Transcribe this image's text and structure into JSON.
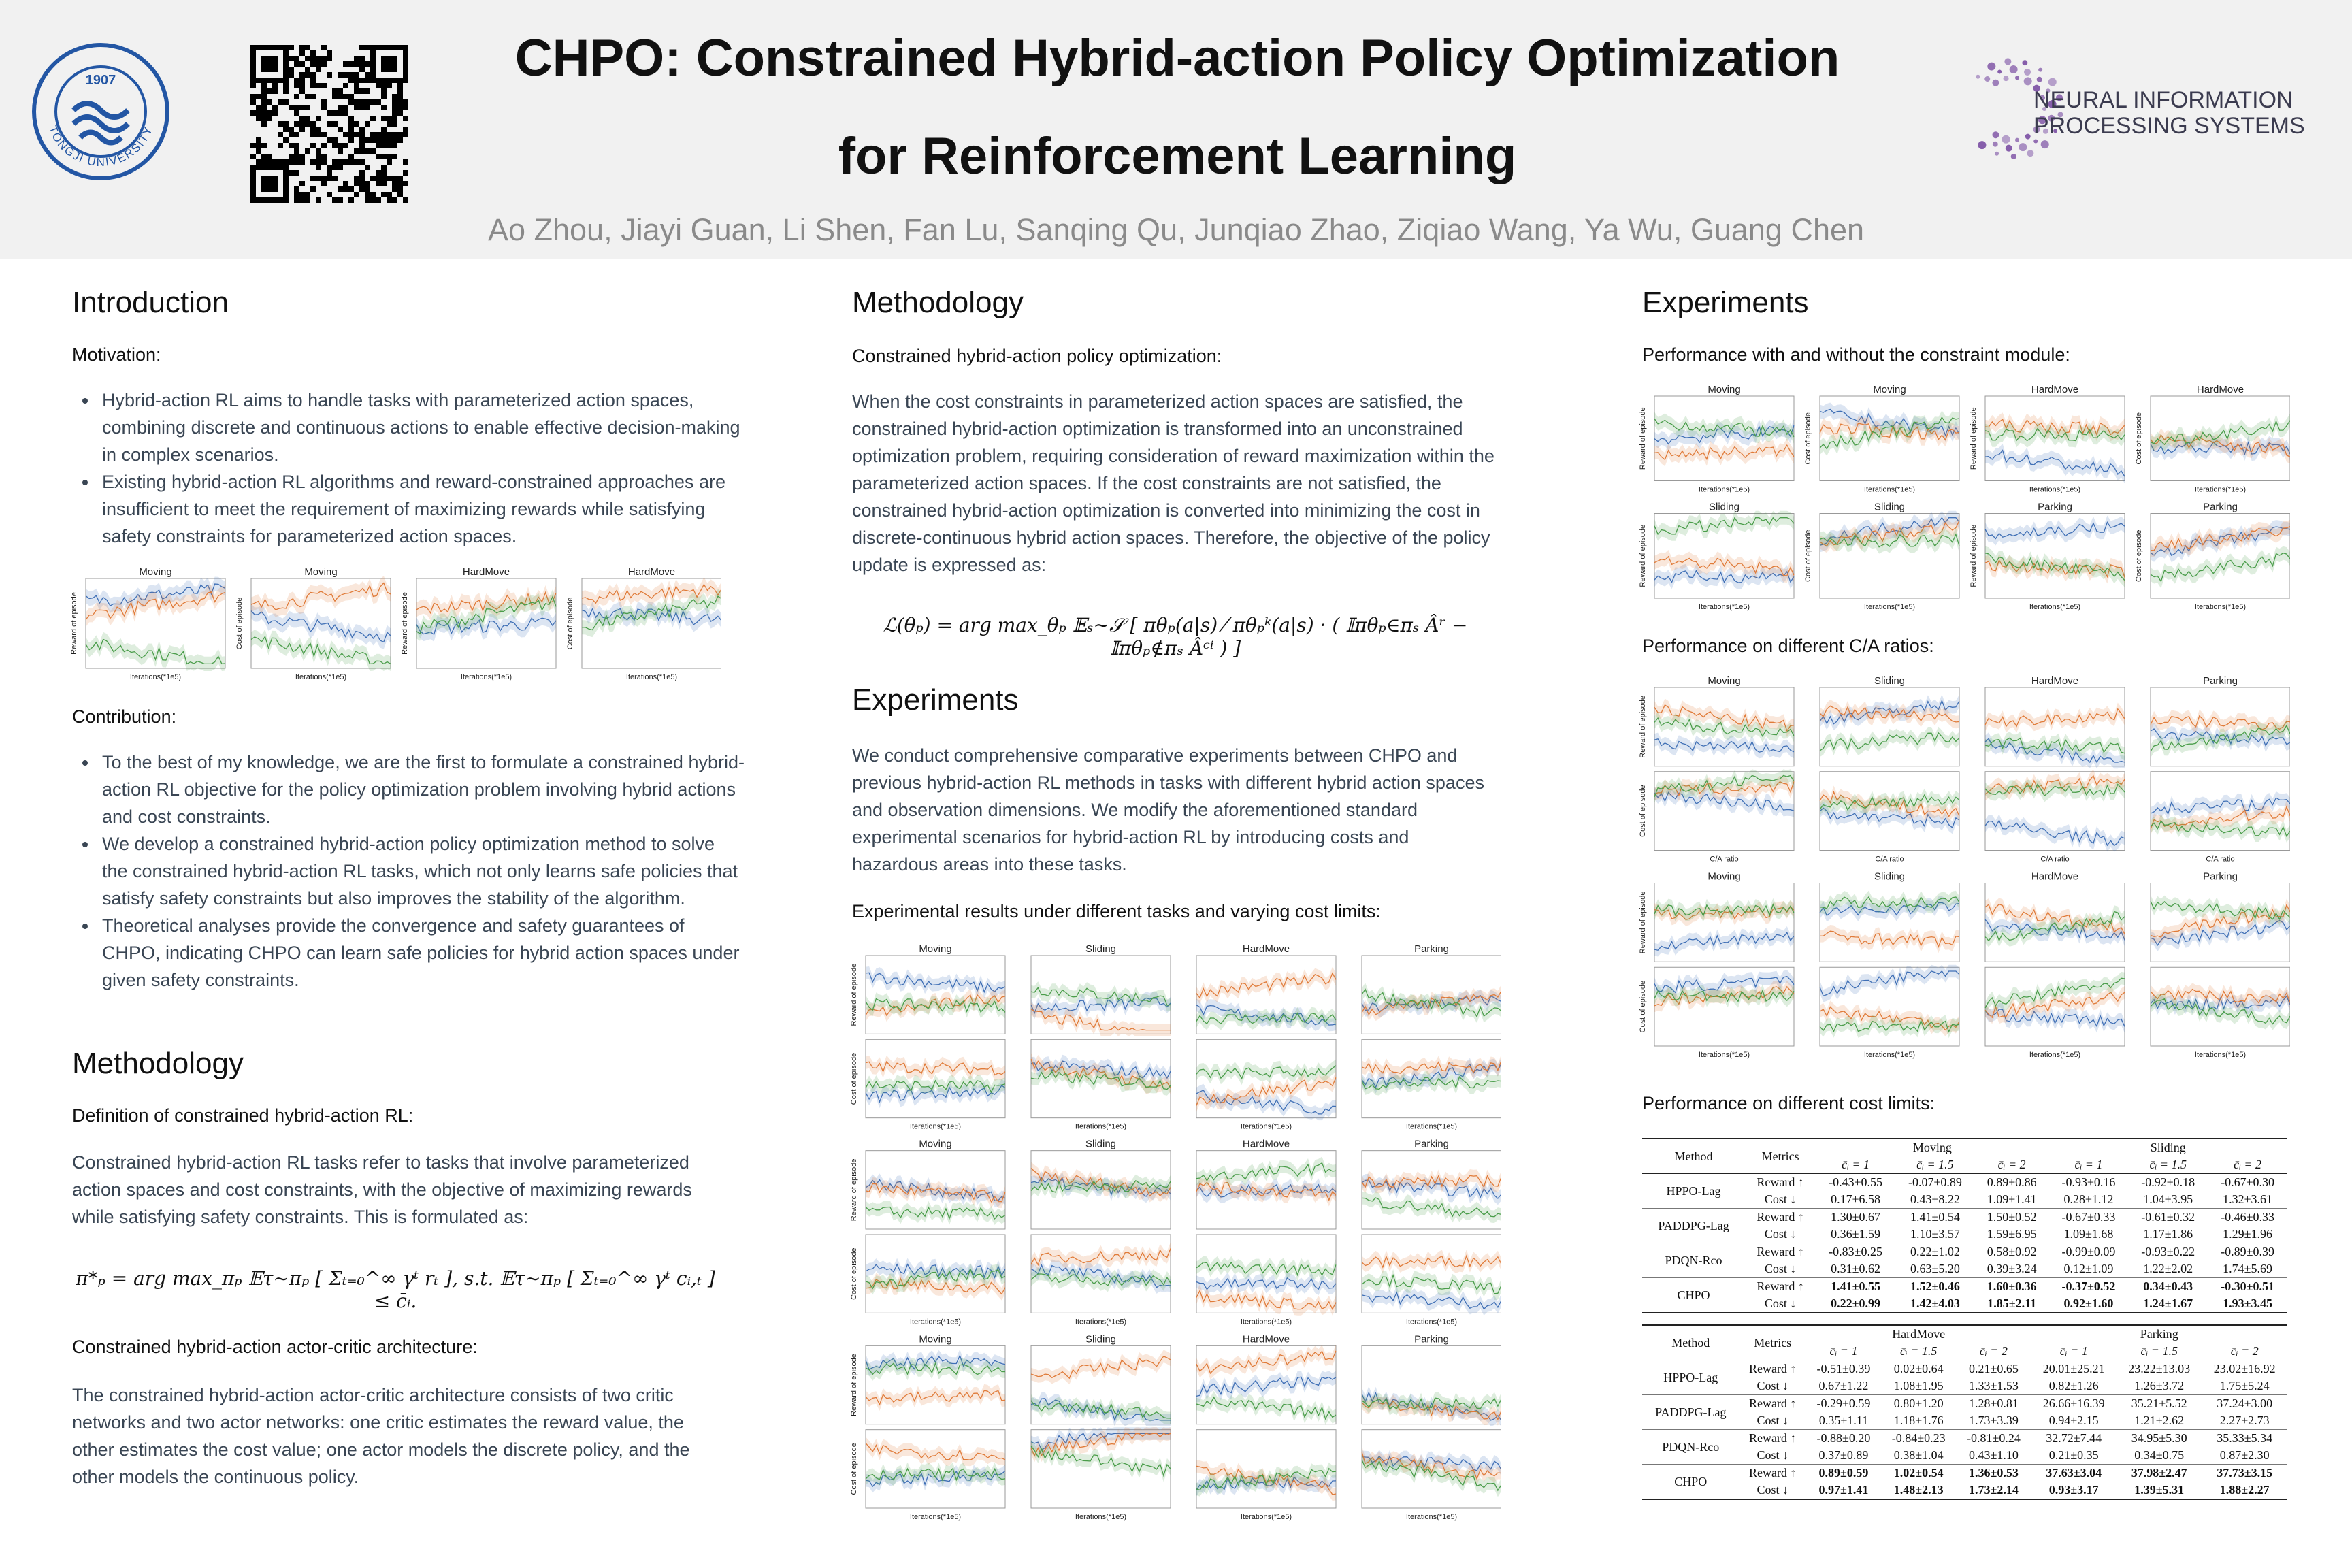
{
  "header": {
    "title_line1": "CHPO: Constrained Hybrid-action Policy Optimization",
    "title_line2": "for Reinforcement Learning",
    "authors": "Ao Zhou, Jiayi Guan, Li Shen, Fan Lu, Sanqing Qu, Junqiao Zhao, Ziqiao Wang, Ya Wu, Guang Chen",
    "logo_name": "TONGJI UNIVERSITY",
    "logo_year": "1907",
    "neurips_line1": "NEURAL INFORMATION",
    "neurips_line2": "PROCESSING SYSTEMS"
  },
  "introduction": {
    "heading": "Introduction",
    "motivation_label": "Motivation:",
    "motivation_bullets": [
      "Hybrid-action RL aims to handle tasks with parameterized action spaces, combining discrete and continuous actions to enable effective decision-making in complex scenarios.",
      "Existing hybrid-action RL algorithms and reward-constrained approaches are insufficient to meet the requirement of maximizing rewards while satisfying safety constraints for parameterized action spaces."
    ],
    "figure": {
      "rows": [
        {
          "titles": [
            "Moving",
            "Moving",
            "HardMove",
            "HardMove"
          ],
          "ylabels": [
            "Reward of episode",
            "Cost of episode",
            "Reward of episode",
            "Cost of episode"
          ],
          "xlabel": "Iterations(*1e5)"
        }
      ]
    },
    "contribution_label": "Contribution:",
    "contribution_bullets": [
      "To the best of my knowledge, we are the first to formulate a constrained hybrid-action RL objective for the policy optimization problem involving hybrid actions and cost constraints.",
      "We develop a constrained hybrid-action policy optimization method to solve the constrained hybrid-action RL tasks, which not only learns safe policies that satisfy safety constraints but also improves the stability of the algorithm.",
      "Theoretical analyses provide the convergence and safety guarantees of CHPO, indicating CHPO can learn safe policies for hybrid action spaces under given safety constraints."
    ]
  },
  "methodology_left": {
    "heading": "Methodology",
    "definition_label": "Definition of constrained hybrid-action RL:",
    "definition_text": "Constrained hybrid-action RL tasks refer to tasks that involve parameterized action spaces and cost constraints, with the objective of maximizing rewards while satisfying safety constraints. This is formulated as:",
    "equation": "π*ₚ = arg max_πₚ 𝔼τ∼πₚ [ Σₜ₌₀^∞ γᵗ rₜ ],  s.t. 𝔼τ∼πₚ [ Σₜ₌₀^∞ γᵗ cᵢ,ₜ ] ≤ c̄ᵢ.",
    "architecture_label": "Constrained hybrid-action actor-critic architecture:",
    "architecture_text": "The constrained hybrid-action actor-critic architecture consists of two critic networks and two actor networks: one critic estimates the reward value, the other estimates the cost value; one actor models the discrete policy, and the other models the continuous policy."
  },
  "methodology_middle": {
    "heading": "Methodology",
    "label": "Constrained hybrid-action policy optimization:",
    "text": "When the cost constraints in parameterized action spaces are satisfied, the constrained hybrid-action optimization is transformed into an unconstrained optimization problem, requiring consideration of reward maximization within the parameterized action spaces. If the cost constraints are not satisfied, the constrained hybrid-action optimization is converted into minimizing the cost in discrete-continuous hybrid action spaces. Therefore, the objective of the policy update is expressed as:",
    "equation": "ℒ(θₚ) = arg max_θₚ 𝔼ₛ∼𝒮 [ πθₚ(a|s) ⁄ πθₚᵏ(a|s) · ( 𝕀πθₚ∈πₛ Âʳ − 𝕀πθₚ∉πₛ Âᶜⁱ ) ]"
  },
  "experiments_middle": {
    "heading": "Experiments",
    "text": "We conduct comprehensive comparative experiments between CHPO and previous hybrid-action RL methods in tasks with different hybrid action spaces and observation dimensions. We modify the aforementioned standard experimental scenarios for hybrid-action RL by introducing costs and hazardous areas into these tasks.",
    "figure_label": "Experimental results under different tasks and varying cost limits:",
    "figure": {
      "rows": [
        {
          "titles": [
            "Moving",
            "Sliding",
            "HardMove",
            "Parking"
          ],
          "ylabel": "Reward of episode"
        },
        {
          "ylabel": "Cost of episode",
          "xlabel": "Iterations(*1e5)"
        },
        {
          "titles": [
            "Moving",
            "Sliding",
            "HardMove",
            "Parking"
          ],
          "ylabel": "Reward of episode"
        },
        {
          "ylabel": "Cost of episode",
          "xlabel": "Iterations(*1e5)"
        },
        {
          "titles": [
            "Moving",
            "Sliding",
            "HardMove",
            "Parking"
          ],
          "ylabel": "Reward of episode"
        },
        {
          "ylabel": "Cost of episode",
          "xlabel": "Iterations(*1e5)"
        }
      ]
    }
  },
  "experiments_right": {
    "heading": "Experiments",
    "figure1_label": "Performance with and without the constraint module:",
    "figure1": {
      "rows": [
        {
          "titles": [
            "Moving",
            "Moving",
            "HardMove",
            "HardMove"
          ],
          "ylabels": [
            "Reward of episode",
            "Cost of episode",
            "Reward of episode",
            "Cost of episode"
          ],
          "xlabel": "Iterations(*1e5)"
        },
        {
          "titles": [
            "Sliding",
            "Sliding",
            "Parking",
            "Parking"
          ],
          "ylabels": [
            "Reward of episode",
            "Cost of episode",
            "Reward of episode",
            "Cost of episode"
          ],
          "xlabel": "Iterations(*1e5)"
        }
      ]
    },
    "figure2_label": "Performance on different C/A ratios:",
    "figure2": {
      "rows": [
        {
          "titles": [
            "Moving",
            "Sliding",
            "HardMove",
            "Parking"
          ],
          "ylabel": "Reward of episode"
        },
        {
          "ylabel": "Cost of episode",
          "xlabel": "C/A ratio"
        },
        {
          "titles": [
            "Moving",
            "Sliding",
            "HardMove",
            "Parking"
          ],
          "ylabel": "Reward of episode"
        },
        {
          "ylabel": "Cost of episode",
          "xlabel": "Iterations(*1e5)"
        }
      ]
    },
    "table_label": "Performance on different cost limits:",
    "tables": [
      {
        "columns": [
          "Method",
          "Metrics"
        ],
        "groups": [
          "Moving",
          "Sliding"
        ],
        "limits": [
          "c̄ᵢ = 1",
          "c̄ᵢ = 1.5",
          "c̄ᵢ = 2"
        ],
        "rows": [
          {
            "method": "HPPO-Lag",
            "metrics": [
              "Reward ↑",
              "Cost ↓"
            ],
            "values": [
              [
                "-0.43±0.55",
                "-0.07±0.89",
                "0.89±0.86",
                "-0.93±0.16",
                "-0.92±0.18",
                "-0.67±0.30"
              ],
              [
                "0.17±6.58",
                "0.43±8.22",
                "1.09±1.41",
                "0.28±1.12",
                "1.04±3.95",
                "1.32±3.61"
              ]
            ]
          },
          {
            "method": "PADDPG-Lag",
            "metrics": [
              "Reward ↑",
              "Cost ↓"
            ],
            "values": [
              [
                "1.30±0.67",
                "1.41±0.54",
                "1.50±0.52",
                "-0.67±0.33",
                "-0.61±0.32",
                "-0.46±0.33"
              ],
              [
                "0.36±1.59",
                "1.10±3.57",
                "1.59±6.95",
                "1.09±1.68",
                "1.17±1.86",
                "1.29±1.96"
              ]
            ]
          },
          {
            "method": "PDQN-Rco",
            "metrics": [
              "Reward ↑",
              "Cost ↓"
            ],
            "values": [
              [
                "-0.83±0.25",
                "0.22±1.02",
                "0.58±0.92",
                "-0.99±0.09",
                "-0.93±0.22",
                "-0.89±0.39"
              ],
              [
                "0.31±0.62",
                "0.63±5.20",
                "0.39±3.24",
                "0.12±1.09",
                "1.22±2.02",
                "1.74±5.69"
              ]
            ]
          },
          {
            "method": "CHPO",
            "metrics": [
              "Reward ↑",
              "Cost ↓"
            ],
            "values": [
              [
                "1.41±0.55",
                "1.52±0.46",
                "1.60±0.36",
                "-0.37±0.52",
                "0.34±0.43",
                "-0.30±0.51"
              ],
              [
                "0.22±0.99",
                "1.42±4.03",
                "1.85±2.11",
                "0.92±1.60",
                "1.24±1.67",
                "1.93±3.45"
              ]
            ]
          }
        ]
      },
      {
        "columns": [
          "Method",
          "Metrics"
        ],
        "groups": [
          "HardMove",
          "Parking"
        ],
        "limits": [
          "c̄ᵢ = 1",
          "c̄ᵢ = 1.5",
          "c̄ᵢ = 2"
        ],
        "rows": [
          {
            "method": "HPPO-Lag",
            "metrics": [
              "Reward ↑",
              "Cost ↓"
            ],
            "values": [
              [
                "-0.51±0.39",
                "0.02±0.64",
                "0.21±0.65",
                "20.01±25.21",
                "23.22±13.03",
                "23.02±16.92"
              ],
              [
                "0.67±1.22",
                "1.08±1.95",
                "1.33±1.53",
                "0.82±1.26",
                "1.26±3.72",
                "1.75±5.24"
              ]
            ]
          },
          {
            "method": "PADDPG-Lag",
            "metrics": [
              "Reward ↑",
              "Cost ↓"
            ],
            "values": [
              [
                "-0.29±0.59",
                "0.80±1.20",
                "1.28±0.81",
                "26.66±16.39",
                "35.21±5.52",
                "37.24±3.00"
              ],
              [
                "0.35±1.11",
                "1.18±1.76",
                "1.73±3.39",
                "0.94±2.15",
                "1.21±2.62",
                "2.27±2.73"
              ]
            ]
          },
          {
            "method": "PDQN-Rco",
            "metrics": [
              "Reward ↑",
              "Cost ↓"
            ],
            "values": [
              [
                "-0.88±0.20",
                "-0.84±0.23",
                "-0.81±0.24",
                "32.72±7.44",
                "34.95±5.30",
                "35.33±5.34"
              ],
              [
                "0.37±0.89",
                "0.38±1.04",
                "0.43±1.10",
                "0.21±0.35",
                "0.34±0.75",
                "0.87±2.30"
              ]
            ]
          },
          {
            "method": "CHPO",
            "metrics": [
              "Reward ↑",
              "Cost ↓"
            ],
            "values": [
              [
                "0.89±0.59",
                "1.02±0.54",
                "1.36±0.53",
                "37.63±3.04",
                "37.98±2.47",
                "37.73±3.15"
              ],
              [
                "0.97±1.41",
                "1.48±2.13",
                "1.73±2.14",
                "0.93±3.17",
                "1.39±5.31",
                "1.88±2.27"
              ]
            ]
          }
        ]
      }
    ]
  }
}
